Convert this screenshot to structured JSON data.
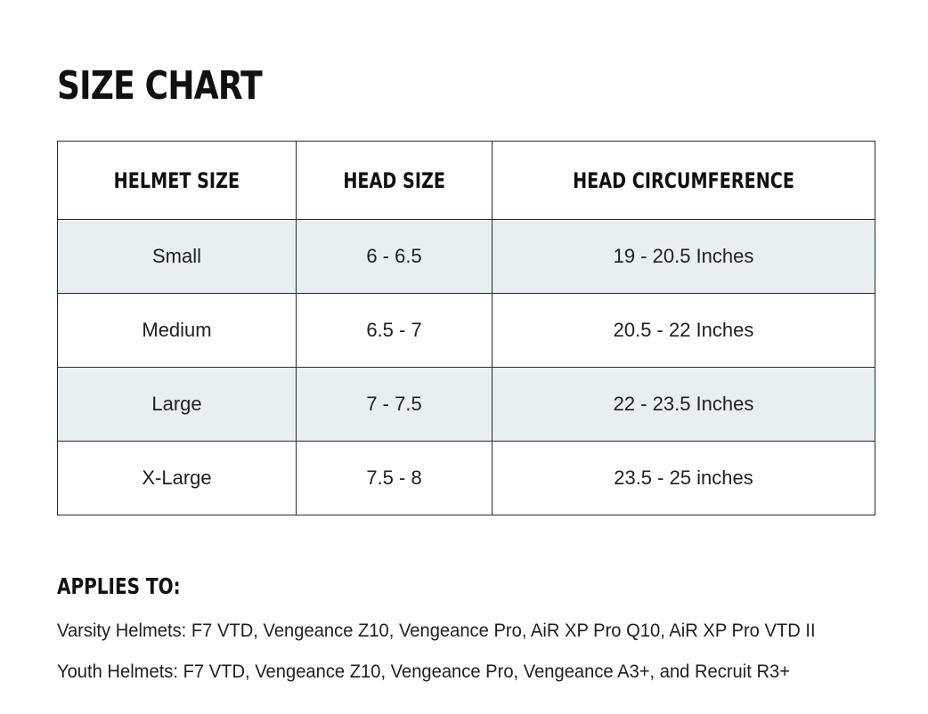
{
  "title": "SIZE CHART",
  "table": {
    "headers": [
      "HELMET SIZE",
      "HEAD SIZE",
      "HEAD CIRCUMFERENCE"
    ],
    "rows": [
      [
        "Small",
        "6 - 6.5",
        "19 - 20.5 Inches"
      ],
      [
        "Medium",
        "6.5 - 7",
        "20.5 - 22 Inches"
      ],
      [
        "Large",
        "7 - 7.5",
        "22 - 23.5 Inches"
      ],
      [
        "X-Large",
        "7.5 - 8",
        "23.5 - 25 inches"
      ]
    ]
  },
  "applies_to": {
    "heading": "APPLIES TO:",
    "varsity": "Varsity Helmets:  F7 VTD, Vengeance Z10, Vengeance Pro, AiR XP Pro Q10, AiR XP Pro VTD II",
    "youth": "Youth Helmets:  F7 VTD, Vengeance Z10, Vengeance Pro, Vengeance A3+, and Recruit R3+"
  },
  "colors": {
    "shaded_row": "#e8eff2",
    "border": "#2a2a2a",
    "text": "#1f1f1f"
  }
}
